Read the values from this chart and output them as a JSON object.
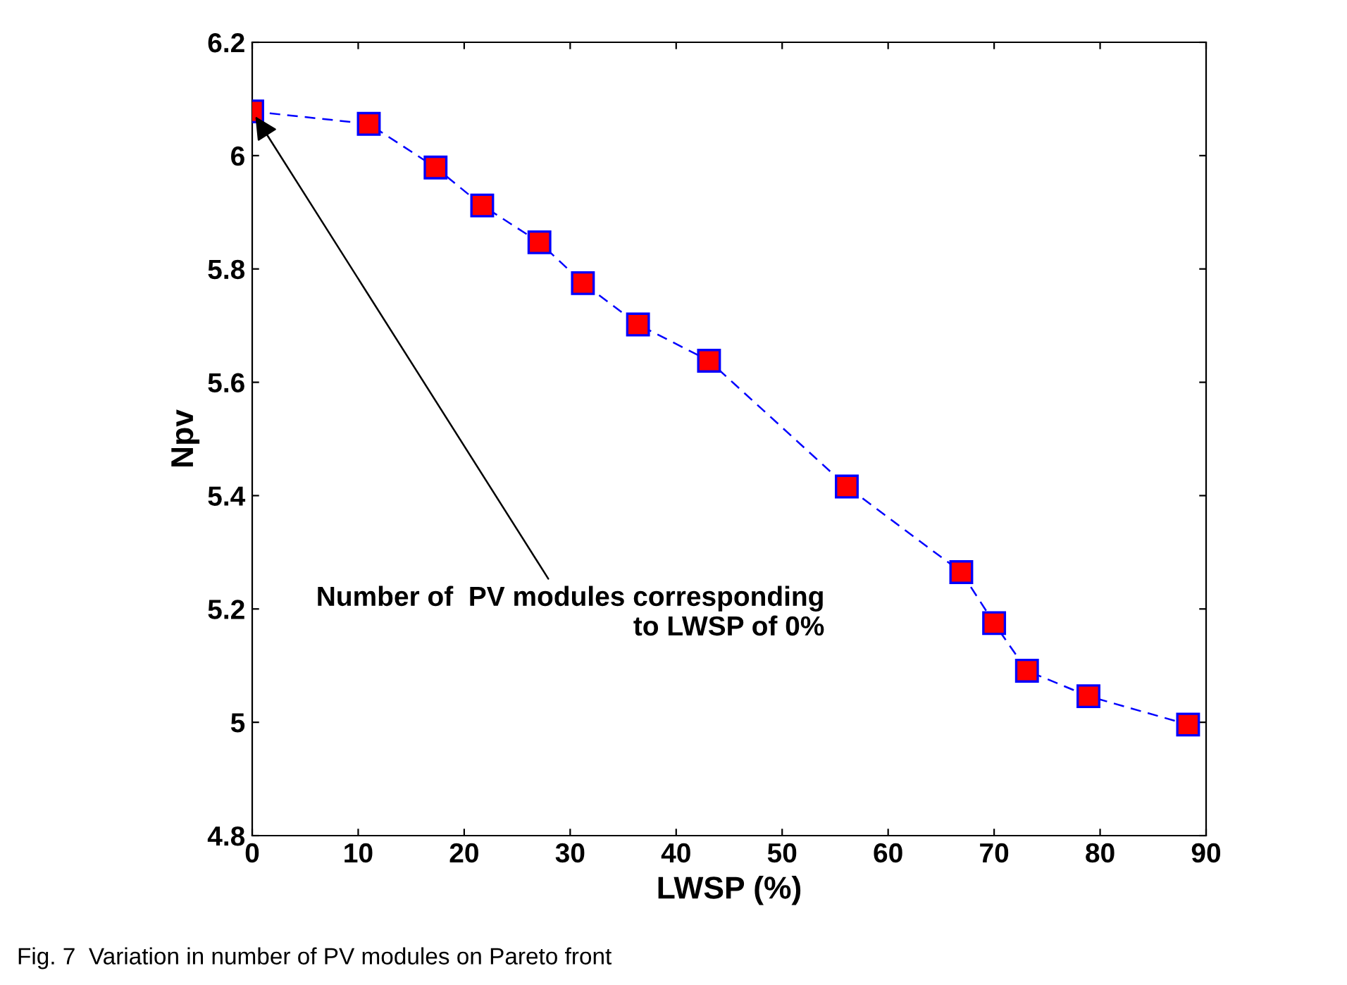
{
  "chart_data": {
    "type": "line",
    "xlabel": "LWSP (%)",
    "ylabel": "Npv",
    "x": [
      0,
      11.0,
      17.3,
      21.7,
      27.1,
      31.2,
      36.4,
      43.1,
      56.1,
      66.9,
      70.0,
      73.1,
      78.9,
      88.3
    ],
    "series": [
      {
        "color": "#0000ff",
        "colors": [
          "#ff0000",
          "#ff0000",
          "#ff0000",
          "#ff0000",
          "#ff0000",
          "#ff0000",
          "#ff0000",
          "#ff0000",
          "#ff0000",
          "#ff0000",
          "#ff0000",
          "#ff0000",
          "#ff0000",
          "#ff0000"
        ],
        "values": [
          6.078,
          6.056,
          5.979,
          5.912,
          5.847,
          5.775,
          5.702,
          5.638,
          5.416,
          5.265,
          5.175,
          5.091,
          5.046,
          4.996
        ]
      }
    ],
    "marker": "square",
    "line_style": "dashed",
    "xlim": [
      0,
      90
    ],
    "xticks": [
      0,
      10,
      20,
      30,
      40,
      50,
      60,
      70,
      80,
      90
    ],
    "ylim": [
      4.8,
      6.2
    ],
    "yticks": [
      4.8,
      5,
      5.2,
      5.4,
      5.6,
      5.8,
      6,
      6.2
    ],
    "grid": false,
    "legend": false,
    "annotations": [
      {
        "text": "Number of  PV modules corresponding\nto LWSP of 0%",
        "x": 0,
        "y": 6.078
      },
      "Fig. 7  Variation in number of PV modules on Pareto front"
    ]
  }
}
